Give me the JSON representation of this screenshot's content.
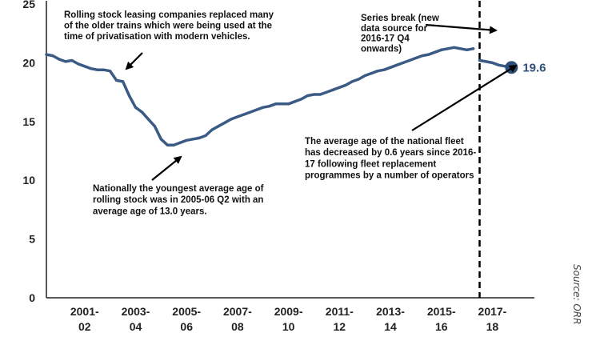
{
  "chart_data": {
    "type": "line",
    "title": "",
    "xlabel": "",
    "ylabel": "",
    "ylim": [
      0,
      25
    ],
    "yticks": [
      "0",
      "5",
      "10",
      "15",
      "20",
      "25"
    ],
    "xticks": [
      {
        "t": 2001,
        "l1": "2001-",
        "l2": "02"
      },
      {
        "t": 2003,
        "l1": "2003-",
        "l2": "04"
      },
      {
        "t": 2005,
        "l1": "2005-",
        "l2": "06"
      },
      {
        "t": 2007,
        "l1": "2007-",
        "l2": "08"
      },
      {
        "t": 2009,
        "l1": "2009-",
        "l2": "10"
      },
      {
        "t": 2011,
        "l1": "2011-",
        "l2": "12"
      },
      {
        "t": 2013,
        "l1": "2013-",
        "l2": "14"
      },
      {
        "t": 2015,
        "l1": "2015-",
        "l2": "16"
      },
      {
        "t": 2017,
        "l1": "2017-",
        "l2": "18"
      }
    ],
    "xlim": [
      2000.0,
      2019.15
    ],
    "series": [
      {
        "name": "",
        "segment": "before series break",
        "x": [
          2000.0,
          2000.25,
          2000.5,
          2000.75,
          2001.0,
          2001.25,
          2001.5,
          2001.75,
          2002.0,
          2002.25,
          2002.5,
          2002.75,
          2003.0,
          2003.25,
          2003.5,
          2003.75,
          2004.0,
          2004.25,
          2004.5,
          2004.75,
          2005.0,
          2005.25,
          2005.5,
          2005.75,
          2006.0,
          2006.25,
          2006.5,
          2006.75,
          2007.0,
          2007.25,
          2007.5,
          2007.75,
          2008.0,
          2008.25,
          2008.5,
          2008.75,
          2009.0,
          2009.25,
          2009.5,
          2009.75,
          2010.0,
          2010.25,
          2010.5,
          2010.75,
          2011.0,
          2011.25,
          2011.5,
          2011.75,
          2012.0,
          2012.25,
          2012.5,
          2012.75,
          2013.0,
          2013.25,
          2013.5,
          2013.75,
          2014.0,
          2014.25,
          2014.5,
          2014.75,
          2015.0,
          2015.25,
          2015.5,
          2015.75,
          2016.0,
          2016.25,
          2016.5,
          2016.75
        ],
        "values": [
          20.7,
          20.6,
          20.3,
          20.1,
          20.2,
          19.9,
          19.7,
          19.5,
          19.4,
          19.4,
          19.3,
          18.5,
          18.4,
          17.2,
          16.2,
          15.8,
          15.2,
          14.6,
          13.5,
          13.0,
          13.0,
          13.2,
          13.4,
          13.5,
          13.6,
          13.8,
          14.3,
          14.6,
          14.9,
          15.2,
          15.4,
          15.6,
          15.8,
          16.0,
          16.2,
          16.3,
          16.5,
          16.5,
          16.5,
          16.7,
          16.9,
          17.2,
          17.3,
          17.3,
          17.5,
          17.7,
          17.9,
          18.1,
          18.4,
          18.6,
          18.9,
          19.1,
          19.3,
          19.4,
          19.6,
          19.8,
          20.0,
          20.2,
          20.4,
          20.6,
          20.7,
          20.9,
          21.1,
          21.2,
          21.3,
          21.2,
          21.1,
          21.2
        ]
      },
      {
        "name": "",
        "segment": "after series break",
        "x": [
          2017.0,
          2017.25,
          2017.5,
          2017.75,
          2018.0,
          2018.25
        ],
        "values": [
          20.2,
          20.1,
          20.0,
          19.8,
          19.7,
          19.6
        ]
      }
    ],
    "series_break_x": 2016.75,
    "end_point": {
      "x": 2018.25,
      "y": 19.6,
      "label": "19.6"
    },
    "annotations": [
      {
        "lines": [
          "Rolling stock leasing companies replaced many",
          "of the older trains which were being used at the",
          "time of privatisation with modern vehicles."
        ]
      },
      {
        "lines": [
          "Series break (new",
          "data source for",
          "2016-17 Q4",
          "onwards)"
        ]
      },
      {
        "lines": [
          "The average age of the national fleet",
          "has decreased by 0.6 years since 2016-",
          "17 following fleet replacement",
          "programmes by a number of operators"
        ]
      },
      {
        "lines": [
          "Nationally the youngest average age of",
          "rolling stock was in 2005-06 Q2 with an",
          "average age of 13.0 years."
        ]
      }
    ],
    "source": "Source:  ORR",
    "colors": {
      "line": "#3b5b85",
      "marker": "#2f4e7a",
      "axis": "#222222",
      "break_line": "#000000"
    }
  }
}
